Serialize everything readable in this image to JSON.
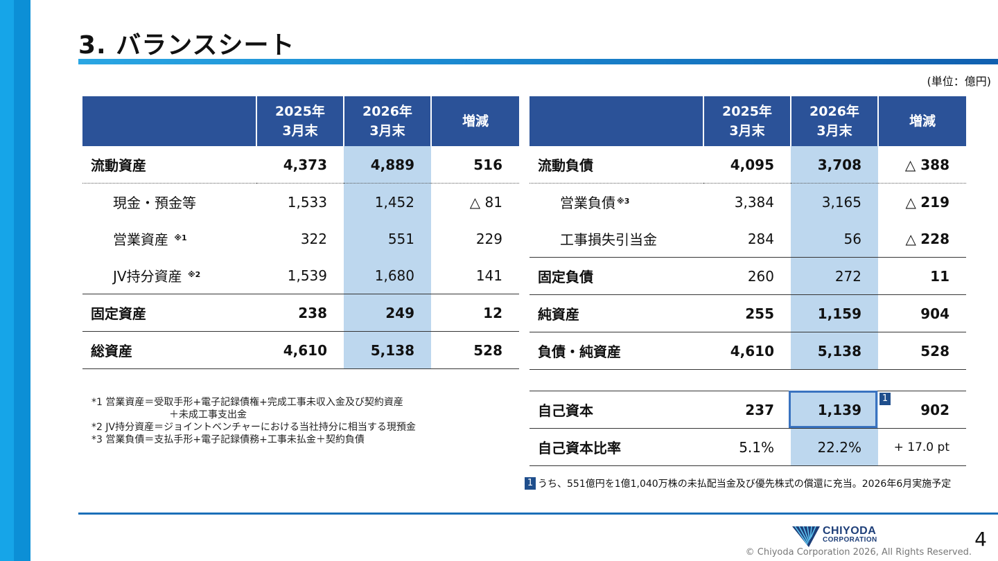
{
  "title": "3. バランスシート",
  "unit_label": "(単位：億円)",
  "headers": {
    "col_2025": [
      "2025年",
      "3月末"
    ],
    "col_2026": [
      "2026年",
      "3月末"
    ],
    "diff": "増減"
  },
  "assets": {
    "current_assets": {
      "label": "流動資産",
      "v2025": "4,373",
      "v2026": "4,889",
      "diff": "516"
    },
    "cash": {
      "label": "現金・預金等",
      "v2025": "1,533",
      "v2026": "1,452",
      "diff_mark": "△",
      "diff": "81"
    },
    "trade_assets": {
      "label": "営業資産",
      "note": "※1",
      "v2025": "322",
      "v2026": "551",
      "diff": "229"
    },
    "jv_assets": {
      "label": "JV持分資産",
      "note": "※2",
      "v2025": "1,539",
      "v2026": "1,680",
      "diff": "141"
    },
    "fixed_assets": {
      "label": "固定資産",
      "v2025": "238",
      "v2026": "249",
      "diff": "12"
    },
    "total_assets": {
      "label": "総資産",
      "v2025": "4,610",
      "v2026": "5,138",
      "diff": "528"
    }
  },
  "liabilities": {
    "current_liabilities": {
      "label": "流動負債",
      "v2025": "4,095",
      "v2026": "3,708",
      "diff_mark": "△",
      "diff": "388"
    },
    "trade_liabilities": {
      "label": "営業負債",
      "note": "※3",
      "v2025": "3,384",
      "v2026": "3,165",
      "diff_mark": "△",
      "diff": "219"
    },
    "construction_loss_provision": {
      "label": "工事損失引当金",
      "v2025": "284",
      "v2026": "56",
      "diff_mark": "△",
      "diff": "228"
    },
    "fixed_liabilities": {
      "label": "固定負債",
      "v2025": "260",
      "v2026": "272",
      "diff": "11"
    },
    "net_assets": {
      "label": "純資産",
      "v2025": "255",
      "v2026": "1,159",
      "diff": "904"
    },
    "total_liabilities_net_assets": {
      "label": "負債・純資産",
      "v2025": "4,610",
      "v2026": "5,138",
      "diff": "528"
    }
  },
  "equity": {
    "own_capital": {
      "label": "自己資本",
      "v2025": "237",
      "v2026": "1,139",
      "diff": "902",
      "badge": "1"
    },
    "equity_ratio": {
      "label": "自己資本比率",
      "v2025": "5.1%",
      "v2026": "22.2%",
      "diff": "+ 17.0 pt"
    }
  },
  "footnotes": [
    "*1  営業資産＝受取手形+電子記録債権+完成工事未収入金及び契約資産",
    "＋未成工事支出金",
    "*2  JV持分資産＝ジョイントベンチャーにおける当社持分に相当する現預金",
    "*3  営業負債＝支払手形+電子記録債務+工事未払金＋契約負債"
  ],
  "note": {
    "badge": "1",
    "text": "うち、551億円を1億1,040万株の未払配当金及び優先株式の償還に充当。2026年6月実施予定"
  },
  "logo": {
    "line1": "CHIYODA",
    "line2": "CORPORATION"
  },
  "copyright": "© Chiyoda Corporation 2026, All Rights Reserved.",
  "page_number": "4",
  "colors": {
    "header_bg": "#2b5298",
    "highlight": "#bdd7ee",
    "accent": "#0c8fd6",
    "badge": "#1f4e8c"
  }
}
